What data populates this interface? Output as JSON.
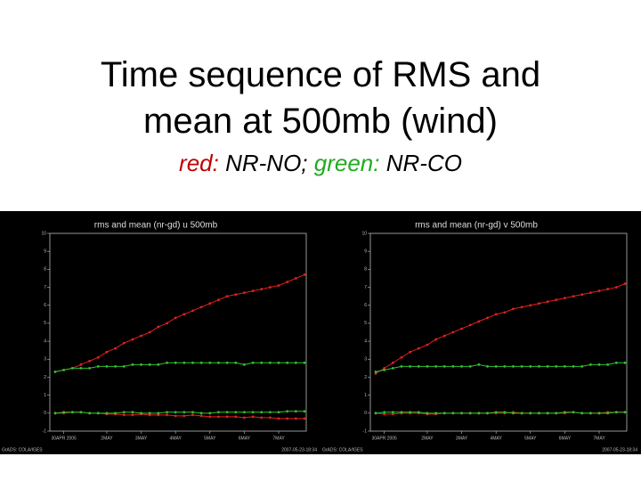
{
  "header": {
    "title": "Time sequence of RMS and mean at 500mb (wind)",
    "subtitle": [
      {
        "text": "red:",
        "color": "#c00000"
      },
      {
        "text": "NR-NO;",
        "color": "#000000"
      },
      {
        "text": "green:",
        "color": "#22aa22"
      },
      {
        "text": "NR-CO",
        "color": "#000000"
      }
    ]
  },
  "chart_data": [
    {
      "type": "line",
      "title": "rms and mean (nr-gd) u 500mb",
      "xlim": [
        0,
        29
      ],
      "xticks": [
        {
          "value": 1,
          "label": "30APR 2005"
        },
        {
          "value": 6,
          "label": "2MAY"
        },
        {
          "value": 10,
          "label": "3MAY"
        },
        {
          "value": 14,
          "label": "4MAY"
        },
        {
          "value": 18,
          "label": "5MAY"
        },
        {
          "value": 22,
          "label": "6MAY"
        },
        {
          "value": 26,
          "label": "7MAY"
        }
      ],
      "ylim": [
        -1,
        10
      ],
      "yticks": [
        -1,
        0,
        1,
        2,
        3,
        4,
        5,
        6,
        7,
        8,
        9,
        10
      ],
      "footer_left": "GrADS: COLA/IGES",
      "footer_right": "2007-05-23-18:34",
      "series": [
        {
          "color": "#e02020",
          "values": [
            2.3,
            2.4,
            2.5,
            2.7,
            2.9,
            3.1,
            3.4,
            3.6,
            3.9,
            4.1,
            4.3,
            4.5,
            4.8,
            5.0,
            5.3,
            5.5,
            5.7,
            5.9,
            6.1,
            6.3,
            6.5,
            6.6,
            6.7,
            6.8,
            6.9,
            7.0,
            7.1,
            7.3,
            7.5,
            7.7
          ]
        },
        {
          "color": "#30c030",
          "values": [
            2.3,
            2.4,
            2.5,
            2.5,
            2.5,
            2.6,
            2.6,
            2.6,
            2.6,
            2.7,
            2.7,
            2.7,
            2.7,
            2.8,
            2.8,
            2.8,
            2.8,
            2.8,
            2.8,
            2.8,
            2.8,
            2.8,
            2.7,
            2.8,
            2.8,
            2.8,
            2.8,
            2.8,
            2.8,
            2.8
          ]
        },
        {
          "color": "#e02020",
          "values": [
            0,
            0,
            0.05,
            0.05,
            0,
            0,
            -0.05,
            -0.05,
            -0.1,
            -0.1,
            -0.05,
            -0.1,
            -0.1,
            -0.1,
            -0.15,
            -0.15,
            -0.1,
            -0.15,
            -0.2,
            -0.2,
            -0.2,
            -0.2,
            -0.25,
            -0.2,
            -0.25,
            -0.25,
            -0.3,
            -0.3,
            -0.3,
            -0.3
          ]
        },
        {
          "color": "#30c030",
          "values": [
            0,
            0.05,
            0.05,
            0.05,
            0,
            0,
            0,
            0,
            0.05,
            0.05,
            0,
            0,
            0,
            0.05,
            0.05,
            0.05,
            0.05,
            0,
            0,
            0.05,
            0.05,
            0.05,
            0.05,
            0.05,
            0.05,
            0.05,
            0.05,
            0.1,
            0.1,
            0.1
          ]
        }
      ]
    },
    {
      "type": "line",
      "title": "rms and mean (nr-gd) v 500mb",
      "xlim": [
        0,
        29
      ],
      "xticks": [
        {
          "value": 1,
          "label": "30APR 2005"
        },
        {
          "value": 6,
          "label": "2MAY"
        },
        {
          "value": 10,
          "label": "3MAY"
        },
        {
          "value": 14,
          "label": "4MAY"
        },
        {
          "value": 18,
          "label": "5MAY"
        },
        {
          "value": 22,
          "label": "6MAY"
        },
        {
          "value": 26,
          "label": "7MAY"
        }
      ],
      "ylim": [
        -1,
        10
      ],
      "yticks": [
        -1,
        0,
        1,
        2,
        3,
        4,
        5,
        6,
        7,
        8,
        9,
        10
      ],
      "footer_left": "GrADS: COLA/IGES",
      "footer_right": "2007-05-23-18:34",
      "series": [
        {
          "color": "#e02020",
          "values": [
            2.2,
            2.5,
            2.8,
            3.1,
            3.4,
            3.6,
            3.8,
            4.1,
            4.3,
            4.5,
            4.7,
            4.9,
            5.1,
            5.3,
            5.5,
            5.6,
            5.8,
            5.9,
            6.0,
            6.1,
            6.2,
            6.3,
            6.4,
            6.5,
            6.6,
            6.7,
            6.8,
            6.9,
            7.0,
            7.2
          ]
        },
        {
          "color": "#30c030",
          "values": [
            2.3,
            2.4,
            2.5,
            2.6,
            2.6,
            2.6,
            2.6,
            2.6,
            2.6,
            2.6,
            2.6,
            2.6,
            2.7,
            2.6,
            2.6,
            2.6,
            2.6,
            2.6,
            2.6,
            2.6,
            2.6,
            2.6,
            2.6,
            2.6,
            2.6,
            2.7,
            2.7,
            2.7,
            2.8,
            2.8
          ]
        },
        {
          "color": "#e02020",
          "values": [
            0,
            -0.05,
            -0.05,
            0,
            0,
            0,
            -0.05,
            -0.05,
            0,
            0,
            0,
            0,
            0,
            0,
            0,
            0,
            0.05,
            0,
            0,
            0,
            0,
            0,
            0,
            0.05,
            0,
            0,
            0,
            0.05,
            0.05,
            0.05
          ]
        },
        {
          "color": "#30c030",
          "values": [
            0,
            0.05,
            0.05,
            0.05,
            0.05,
            0.05,
            0,
            0,
            0,
            0,
            0,
            0,
            0,
            0,
            0.05,
            0.05,
            0,
            0,
            0,
            0,
            0,
            0,
            0.05,
            0.05,
            0,
            0,
            0,
            0,
            0.05,
            0.05
          ]
        }
      ]
    }
  ]
}
